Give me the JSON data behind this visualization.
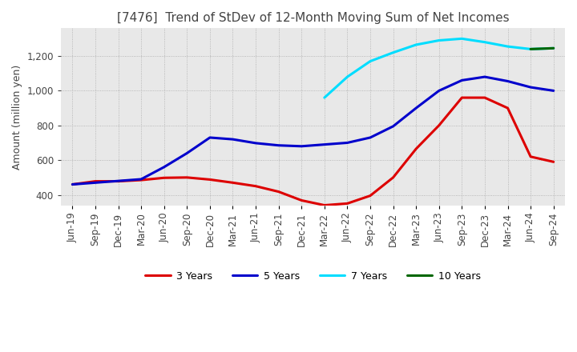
{
  "title": "[7476]  Trend of StDev of 12-Month Moving Sum of Net Incomes",
  "ylabel": "Amount (million yen)",
  "title_fontsize": 11,
  "label_fontsize": 9,
  "tick_fontsize": 8.5,
  "background_color": "#ffffff",
  "plot_bg_color": "#e8e8e8",
  "grid_color": "#aaaaaa",
  "ylim": [
    340,
    1360
  ],
  "yticks": [
    400,
    600,
    800,
    1000,
    1200
  ],
  "x_labels": [
    "Jun-19",
    "Sep-19",
    "Dec-19",
    "Mar-20",
    "Jun-20",
    "Sep-20",
    "Dec-20",
    "Mar-21",
    "Jun-21",
    "Sep-21",
    "Dec-21",
    "Mar-22",
    "Jun-22",
    "Sep-22",
    "Dec-22",
    "Mar-23",
    "Jun-23",
    "Sep-23",
    "Dec-23",
    "Mar-24",
    "Jun-24",
    "Sep-24"
  ],
  "series": {
    "3 Years": {
      "color": "#dd0000",
      "x": [
        0,
        1,
        2,
        3,
        4,
        5,
        6,
        7,
        8,
        9,
        10,
        11,
        12,
        13,
        14,
        15,
        16,
        17,
        18,
        19,
        20,
        21
      ],
      "y": [
        460,
        478,
        478,
        485,
        498,
        500,
        488,
        470,
        450,
        418,
        368,
        340,
        350,
        395,
        500,
        665,
        800,
        960,
        960,
        900,
        620,
        590
      ]
    },
    "5 Years": {
      "color": "#0000cc",
      "x": [
        0,
        1,
        2,
        3,
        4,
        5,
        6,
        7,
        8,
        9,
        10,
        11,
        12,
        13,
        14,
        15,
        16,
        17,
        18,
        19,
        20,
        21
      ],
      "y": [
        460,
        470,
        480,
        490,
        560,
        640,
        730,
        720,
        698,
        685,
        680,
        690,
        700,
        730,
        795,
        900,
        1000,
        1060,
        1080,
        1055,
        1020,
        1000
      ]
    },
    "7 Years": {
      "color": "#00ddff",
      "x": [
        11,
        12,
        13,
        14,
        15,
        16,
        17,
        18,
        19,
        20,
        21
      ],
      "y": [
        960,
        1080,
        1170,
        1220,
        1265,
        1290,
        1300,
        1280,
        1255,
        1240,
        1245
      ]
    },
    "10 Years": {
      "color": "#006600",
      "x": [
        20,
        21
      ],
      "y": [
        1240,
        1245
      ]
    }
  }
}
